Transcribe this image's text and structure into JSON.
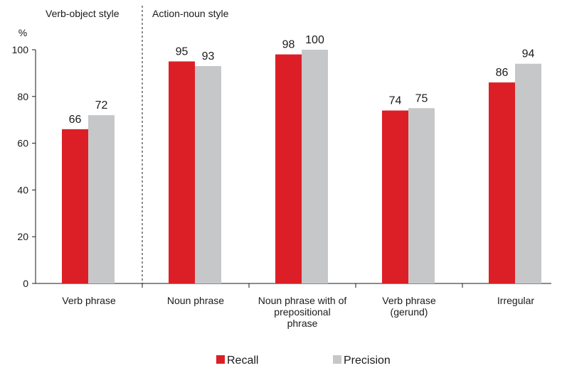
{
  "chart_data": {
    "type": "bar",
    "ylabel": "%",
    "ylim": [
      0,
      100
    ],
    "yticks": [
      0,
      20,
      40,
      60,
      80,
      100
    ],
    "categories": [
      [
        "Verb phrase"
      ],
      [
        "Noun phrase"
      ],
      [
        "Noun phrase with of",
        "prepositional",
        "phrase"
      ],
      [
        "Verb phrase",
        "(gerund)"
      ],
      [
        "Irregular"
      ]
    ],
    "series": [
      {
        "name": "Recall",
        "color": "#dc1f26",
        "values": [
          66,
          95,
          98,
          74,
          86
        ]
      },
      {
        "name": "Precision",
        "color": "#c6c7c9",
        "values": [
          72,
          93,
          100,
          75,
          94
        ]
      }
    ],
    "sections": [
      {
        "label": "Verb-object style"
      },
      {
        "label": "Action-noun style"
      }
    ],
    "grid": false,
    "legend": "bottom-center"
  }
}
